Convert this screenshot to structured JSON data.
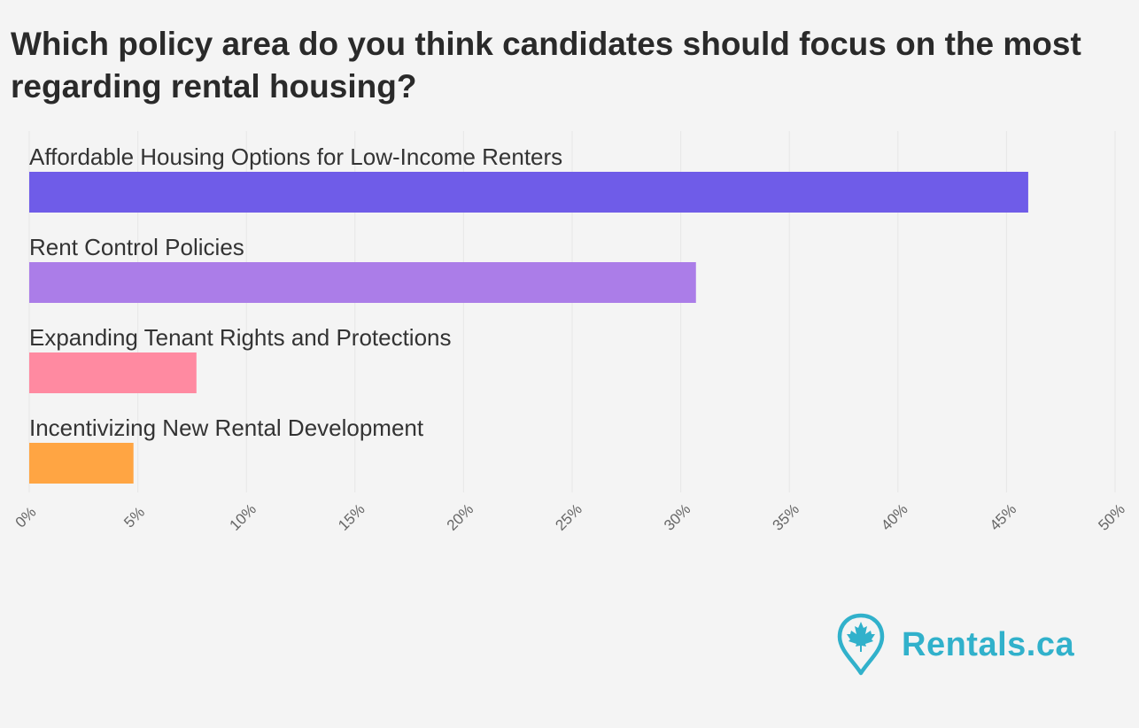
{
  "chart_data": {
    "type": "bar",
    "orientation": "horizontal",
    "title": "Which policy area do you think candidates should focus on the most regarding rental housing?",
    "categories": [
      "Affordable Housing Options for Low-Income Renters",
      "Rent Control Policies",
      "Expanding Tenant Rights and Protections",
      "Incentivizing New Rental Development"
    ],
    "values": [
      46,
      30.7,
      7.7,
      4.8
    ],
    "colors": [
      "#6f5ce8",
      "#ab7de8",
      "#ff8aa1",
      "#ffa543"
    ],
    "xlim": [
      0,
      50
    ],
    "x_ticks": [
      "0%",
      "5%",
      "10%",
      "15%",
      "20%",
      "25%",
      "30%",
      "35%",
      "40%",
      "45%",
      "50%"
    ],
    "xlabel": "",
    "ylabel": "",
    "grid": true
  },
  "branding": {
    "logo_text": "Rentals.ca",
    "logo_icon": "map-pin-maple-leaf-icon",
    "color": "#31b1cb"
  }
}
